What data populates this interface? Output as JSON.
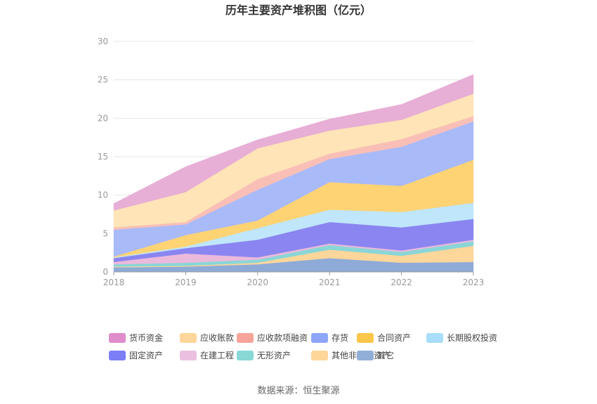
{
  "chart_data": {
    "type": "area",
    "stacked": true,
    "title": "历年主要资产堆积图（亿元）",
    "xlabel": "",
    "ylabel": "",
    "x": [
      "2018",
      "2019",
      "2020",
      "2021",
      "2022",
      "2023"
    ],
    "ylim": [
      0,
      30
    ],
    "yticks": [
      "0",
      "5",
      "10",
      "15",
      "20",
      "25",
      "30"
    ],
    "grid": true,
    "legend_position": "bottom",
    "series": [
      {
        "name": "其它",
        "color": "#8eabd8",
        "values": [
          0.6,
          0.7,
          1.0,
          1.8,
          1.2,
          1.3
        ]
      },
      {
        "name": "其他非流动资产",
        "color": "#fdd69a",
        "values": [
          0.1,
          0.1,
          0.2,
          1.1,
          0.9,
          2.1
        ]
      },
      {
        "name": "无形资产",
        "color": "#8ad6d6",
        "values": [
          0.3,
          0.4,
          0.4,
          0.6,
          0.5,
          0.6
        ]
      },
      {
        "name": "在建工程",
        "color": "#eab9dc",
        "values": [
          0.3,
          1.2,
          0.3,
          0.2,
          0.2,
          0.2
        ]
      },
      {
        "name": "固定资产",
        "color": "#8a85f0",
        "values": [
          0.5,
          0.7,
          2.3,
          2.8,
          3.0,
          2.7
        ]
      },
      {
        "name": "长期股权投资",
        "color": "#bfe6fb",
        "values": [
          0.1,
          0.2,
          1.5,
          1.6,
          2.0,
          2.1
        ]
      },
      {
        "name": "合同资产",
        "color": "#fdd374",
        "values": [
          0.1,
          1.5,
          1.0,
          3.6,
          3.4,
          5.6
        ]
      },
      {
        "name": "存货",
        "color": "#a9baf9",
        "values": [
          3.5,
          1.4,
          4.0,
          3.0,
          5.1,
          5.0
        ]
      },
      {
        "name": "应收款项融资",
        "color": "#f9bfb6",
        "values": [
          0.3,
          0.3,
          1.4,
          0.7,
          1.0,
          0.7
        ]
      },
      {
        "name": "应收账款",
        "color": "#fee4b6",
        "values": [
          2.2,
          3.9,
          4.0,
          3.0,
          2.5,
          2.9
        ]
      },
      {
        "name": "货币资金",
        "color": "#e7aed6",
        "values": [
          0.9,
          3.3,
          1.1,
          1.5,
          2.0,
          2.5
        ]
      }
    ],
    "legend": [
      {
        "name": "货币资金",
        "color": "#e08ccb"
      },
      {
        "name": "应收账款",
        "color": "#fed69a"
      },
      {
        "name": "应收款项融资",
        "color": "#f6a49a"
      },
      {
        "name": "存货",
        "color": "#8ea6f7"
      },
      {
        "name": "合同资产",
        "color": "#fcc64a"
      },
      {
        "name": "长期股权投资",
        "color": "#a8def9"
      },
      {
        "name": "固定资产",
        "color": "#7b7ef5"
      },
      {
        "name": "在建工程",
        "color": "#ebbfe0"
      },
      {
        "name": "无形资产",
        "color": "#88d8d6"
      },
      {
        "name": "其他非流动资产",
        "color": "#fed69a"
      },
      {
        "name": "其它",
        "color": "#91aed8"
      }
    ],
    "source": "数据来源：恒生聚源"
  }
}
